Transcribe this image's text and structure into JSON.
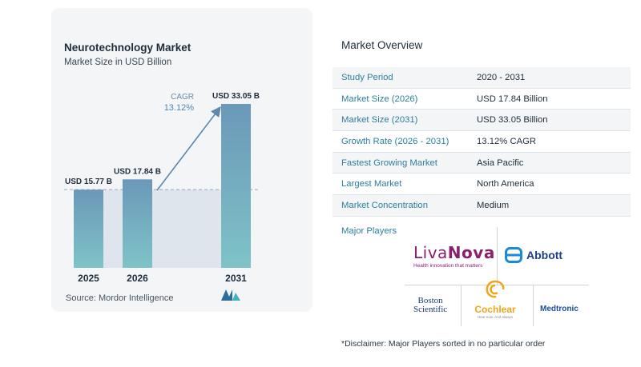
{
  "chart_data": {
    "type": "bar",
    "title": "Neurotechnology Market",
    "subtitle": "Market Size in USD Billion",
    "categories": [
      "2025",
      "2026",
      "2031"
    ],
    "values": [
      15.77,
      17.84,
      33.05
    ],
    "data_labels": [
      "USD 15.77 B",
      "USD 17.84 B",
      "USD 33.05 B"
    ],
    "cagr_label": "CAGR",
    "cagr_value": "13.12%",
    "ylim": [
      0,
      35
    ],
    "grid": false,
    "reference_line_value": 15.77,
    "bar_color_top": "#6b98b8",
    "bar_color_bottom": "#7fc3c8",
    "arrow_color": "#5c89ad"
  },
  "source_text": "Source:  Mordor Intelligence",
  "overview": {
    "title": "Market Overview",
    "rows": [
      {
        "label": "Study Period",
        "value": "2020 - 2031"
      },
      {
        "label": "Market Size (2026)",
        "value": "USD 17.84 Billion"
      },
      {
        "label": "Market Size (2031)",
        "value": "USD 33.05 Billion"
      },
      {
        "label": "Growth Rate (2026 - 2031)",
        "value": "13.12% CAGR"
      },
      {
        "label": "Fastest Growing Market",
        "value": "Asia Pacific"
      },
      {
        "label": "Largest Market",
        "value": "North America"
      },
      {
        "label": "Market Concentration",
        "value": "Medium"
      }
    ]
  },
  "players": {
    "title": "Major Players",
    "livanova": {
      "part1": "Liva",
      "part2": "Nova",
      "tagline": "Health innovation that matters"
    },
    "abbott": "Abbott",
    "boston": {
      "line1": "Boston",
      "line2": "Scientific"
    },
    "cochlear": {
      "name": "Cochlear",
      "tagline": "Hear now. And always"
    },
    "medtronic": "Medtronic"
  },
  "disclaimer": "*Disclaimer: Major Players sorted in no particular order"
}
